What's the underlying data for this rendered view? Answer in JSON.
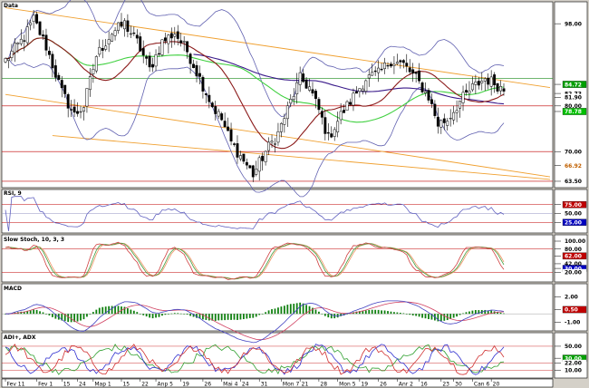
{
  "app": {
    "title": "Data"
  },
  "chart_data": [
    {
      "id": "price",
      "type": "candlestick",
      "title": "Data",
      "ylim": [
        62.5,
        102
      ],
      "yticks": [
        {
          "v": 98.0,
          "label": "98.00"
        },
        {
          "v": 70.0,
          "label": "70.00"
        },
        {
          "v": 63.5,
          "label": "63.50"
        }
      ],
      "tags": [
        {
          "v": 84.72,
          "label": "84.72",
          "bg": "#00a000",
          "fg": "#ffffff"
        },
        {
          "v": 82.73,
          "label": "82.73",
          "bg": "#ffffff",
          "fg": "#000000"
        },
        {
          "v": 81.9,
          "label": "81.90",
          "bg": "#ffffff",
          "fg": "#000000"
        },
        {
          "v": 80.0,
          "label": "80.00",
          "bg": "#ffffff",
          "fg": "#000000"
        },
        {
          "v": 78.78,
          "label": "78.78",
          "bg": "#00c000",
          "fg": "#ffffff"
        },
        {
          "v": 66.92,
          "label": "66.92",
          "bg": "#ffffff",
          "fg": "#c06000"
        }
      ],
      "hlines": [
        {
          "v": 86.0,
          "color": "#1a8a1a"
        },
        {
          "v": 80.0,
          "color": "#c00000"
        },
        {
          "v": 70.0,
          "color": "#c00000"
        },
        {
          "v": 63.5,
          "color": "#c00000"
        }
      ],
      "candles": [],
      "lines": []
    },
    {
      "id": "rsi",
      "type": "line",
      "title": "RSI, 9",
      "ylim": [
        0,
        100
      ],
      "yticks": [
        {
          "v": 75,
          "label": "75.00",
          "bg": "#c00000",
          "fg": "#ffffff"
        },
        {
          "v": 50,
          "label": "50.00",
          "bg": "#ffffff",
          "fg": "#000000"
        },
        {
          "v": 25,
          "label": "25.00",
          "bg": "#0000c0",
          "fg": "#ffffff"
        }
      ],
      "series": [
        {
          "values": []
        }
      ]
    },
    {
      "id": "stoch",
      "type": "line",
      "title": "Slow Stoch, 10, 3, 3",
      "ylim": [
        0,
        100
      ],
      "yticks": [
        {
          "v": 100,
          "label": "100.00",
          "bg": "#ffffff",
          "fg": "#000000"
        },
        {
          "v": 80,
          "label": "80.00",
          "bg": "#ffffff",
          "fg": "#000000"
        },
        {
          "v": 62,
          "label": "62.00",
          "bg": "#c00000",
          "fg": "#ffffff"
        },
        {
          "v": 42,
          "label": "42.00",
          "bg": "#ffffff",
          "fg": "#000000"
        },
        {
          "v": 30,
          "label": "30.00",
          "bg": "#0000c0",
          "fg": "#ffffff"
        },
        {
          "v": 20,
          "label": "20.00",
          "bg": "#ffffff",
          "fg": "#000000"
        }
      ],
      "series": []
    },
    {
      "id": "macd",
      "type": "line",
      "title": "MACD",
      "ylim": [
        -1.8,
        2.8
      ],
      "yticks": [
        {
          "v": 2,
          "label": "2.00",
          "bg": "#ffffff",
          "fg": "#000000"
        },
        {
          "v": 0.5,
          "label": "0.50",
          "bg": "#c00000",
          "fg": "#ffffff"
        },
        {
          "v": -1,
          "label": "-1.00",
          "bg": "#ffffff",
          "fg": "#000000"
        }
      ],
      "series": []
    },
    {
      "id": "adx",
      "type": "line",
      "title": "ADI+, ADX",
      "ylim": [
        0,
        62
      ],
      "yticks": [
        {
          "v": 50,
          "label": "50.00",
          "bg": "#ffffff",
          "fg": "#000000"
        },
        {
          "v": 30,
          "label": "30.00",
          "bg": "#00a000",
          "fg": "#ffffff"
        },
        {
          "v": 22,
          "label": "22.00",
          "bg": "#ffffff",
          "fg": "#000000"
        },
        {
          "v": 10,
          "label": "10.00",
          "bg": "#ffffff",
          "fg": "#000000"
        }
      ],
      "series": []
    }
  ],
  "xaxis": {
    "labels": [
      {
        "i": 0,
        "label": "Fev 11"
      },
      {
        "i": 10,
        "label": "Fev 1"
      },
      {
        "i": 18,
        "label": "15"
      },
      {
        "i": 23,
        "label": "24"
      },
      {
        "i": 28,
        "label": "Map 1"
      },
      {
        "i": 37,
        "label": "15"
      },
      {
        "i": 43,
        "label": "22"
      },
      {
        "i": 48,
        "label": "Anp 5"
      },
      {
        "i": 56,
        "label": "19"
      },
      {
        "i": 63,
        "label": "26"
      },
      {
        "i": 69,
        "label": "Mai 4"
      },
      {
        "i": 75,
        "label": "24"
      },
      {
        "i": 81,
        "label": "31"
      },
      {
        "i": 88,
        "label": "Mon 7"
      },
      {
        "i": 94,
        "label": "21"
      },
      {
        "i": 100,
        "label": "28"
      },
      {
        "i": 106,
        "label": "Mon 5"
      },
      {
        "i": 113,
        "label": "19"
      },
      {
        "i": 119,
        "label": "26"
      },
      {
        "i": 125,
        "label": "Anr 2"
      },
      {
        "i": 132,
        "label": "16"
      },
      {
        "i": 139,
        "label": "23"
      },
      {
        "i": 143,
        "label": "30"
      },
      {
        "i": 149,
        "label": "Can 6"
      },
      {
        "i": 155,
        "label": "20"
      }
    ]
  },
  "colors": {
    "bg": "#ffffff",
    "frame": "#000000",
    "axis_panel": "#d4d0c8",
    "orange": "#f0a030",
    "green_ma": "#40d040",
    "maroon_ma": "#8b1a1a",
    "purple_ma": "#3a1a8a",
    "bollinger": "#6060b0",
    "rsi_line": "#6060c0",
    "stoch_k": "#d04040",
    "stoch_d": "#40a040",
    "stoch_3": "#f09060",
    "macd_line": "#4040c0",
    "macd_signal": "#d04060",
    "macd_hist": "#108010",
    "adx_red": "#d03030",
    "adx_blue": "#3030d0",
    "adx_green": "#30a030"
  }
}
